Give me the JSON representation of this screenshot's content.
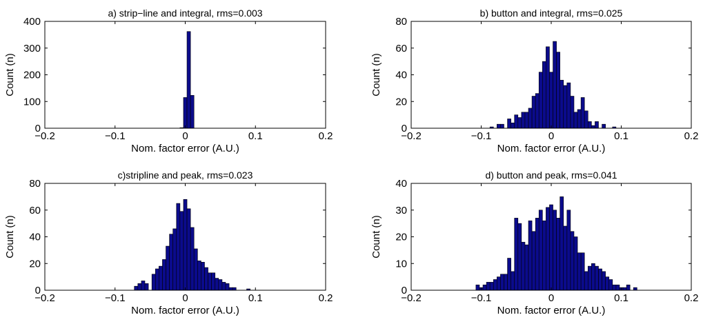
{
  "bar_color": "#0b0b8c",
  "bar_edge": "#000000",
  "chart_data": [
    {
      "type": "bar",
      "title": "a) strip−line and integral, rms=0.003",
      "xlabel": "Nom. factor error (A.U.)",
      "ylabel": "Count (n)",
      "xlim": [
        -0.2,
        0.2
      ],
      "ylim": [
        0,
        400
      ],
      "xticks": [
        -0.2,
        -0.1,
        0,
        0.1,
        0.2
      ],
      "xtick_labels": [
        "−0.2",
        "−0.1",
        "0",
        "0.1",
        "0.2"
      ],
      "yticks": [
        0,
        100,
        200,
        300,
        400
      ],
      "ytick_labels": [
        "0",
        "100",
        "200",
        "300",
        "400"
      ],
      "bin_width": 0.005,
      "x": [
        -0.005,
        0,
        0.005,
        0.01
      ],
      "values": [
        2,
        115,
        362,
        123
      ]
    },
    {
      "type": "bar",
      "title": "b) button and integral, rms=0.025",
      "xlabel": "Nom. factor error (A.U.)",
      "ylabel": "Count (n)",
      "xlim": [
        -0.2,
        0.2
      ],
      "ylim": [
        0,
        80
      ],
      "xticks": [
        -0.2,
        -0.1,
        0,
        0.1,
        0.2
      ],
      "xtick_labels": [
        "−0.2",
        "−0.1",
        "0",
        "0.1",
        "0.2"
      ],
      "yticks": [
        0,
        20,
        40,
        60,
        80
      ],
      "ytick_labels": [
        "0",
        "20",
        "40",
        "60",
        "80"
      ],
      "bin_width": 0.005,
      "x": [
        -0.085,
        -0.08,
        -0.075,
        -0.07,
        -0.065,
        -0.06,
        -0.055,
        -0.05,
        -0.045,
        -0.04,
        -0.035,
        -0.03,
        -0.025,
        -0.02,
        -0.015,
        -0.01,
        -0.005,
        0,
        0.005,
        0.01,
        0.015,
        0.02,
        0.025,
        0.03,
        0.035,
        0.04,
        0.045,
        0.05,
        0.055,
        0.06,
        0.065,
        0.07,
        0.075,
        0.08,
        0.085,
        0.09,
        0.095,
        0.1,
        0.105
      ],
      "values": [
        1,
        0,
        3,
        3,
        0,
        7,
        4,
        10,
        8,
        12,
        12,
        15,
        24,
        26,
        42,
        50,
        61,
        42,
        65,
        57,
        36,
        32,
        34,
        24,
        12,
        14,
        23,
        13,
        5,
        2,
        5,
        0,
        3,
        0,
        0,
        1,
        0,
        0,
        0
      ]
    },
    {
      "type": "bar",
      "title": "c)stripline and peak, rms=0.023",
      "xlabel": "Nom. factor error (A.U.)",
      "ylabel": "Count (n)",
      "xlim": [
        -0.2,
        0.2
      ],
      "ylim": [
        0,
        80
      ],
      "xticks": [
        -0.2,
        -0.1,
        0,
        0.1,
        0.2
      ],
      "xtick_labels": [
        "−0.2",
        "−0.1",
        "0",
        "0.1",
        "0.2"
      ],
      "yticks": [
        0,
        20,
        40,
        60,
        80
      ],
      "ytick_labels": [
        "0",
        "20",
        "40",
        "60",
        "80"
      ],
      "bin_width": 0.005,
      "x": [
        -0.07,
        -0.065,
        -0.06,
        -0.055,
        -0.05,
        -0.045,
        -0.04,
        -0.035,
        -0.03,
        -0.025,
        -0.02,
        -0.015,
        -0.01,
        -0.005,
        0,
        0.005,
        0.01,
        0.015,
        0.02,
        0.025,
        0.03,
        0.035,
        0.04,
        0.045,
        0.05,
        0.055,
        0.06,
        0.065,
        0.07,
        0.075,
        0.08,
        0.085,
        0.09,
        0.095
      ],
      "values": [
        3,
        5,
        7,
        5,
        0,
        12,
        16,
        18,
        23,
        33,
        42,
        46,
        65,
        59,
        68,
        61,
        47,
        31,
        22,
        21,
        17,
        13,
        13,
        9,
        8,
        6,
        5,
        2,
        2,
        0,
        0,
        0,
        1,
        0
      ]
    },
    {
      "type": "bar",
      "title": "d) button and peak, rms=0.041",
      "xlabel": "Nom. factor error (A.U.)",
      "ylabel": "Count (n)",
      "xlim": [
        -0.2,
        0.2
      ],
      "ylim": [
        0,
        40
      ],
      "xticks": [
        -0.2,
        -0.1,
        0,
        0.1,
        0.2
      ],
      "xtick_labels": [
        "−0.2",
        "−0.1",
        "0",
        "0.1",
        "0.2"
      ],
      "yticks": [
        0,
        10,
        20,
        30,
        40
      ],
      "ytick_labels": [
        "0",
        "10",
        "20",
        "30",
        "40"
      ],
      "bin_width": 0.005,
      "x": [
        -0.105,
        -0.1,
        -0.095,
        -0.09,
        -0.085,
        -0.08,
        -0.075,
        -0.07,
        -0.065,
        -0.06,
        -0.055,
        -0.05,
        -0.045,
        -0.04,
        -0.035,
        -0.03,
        -0.025,
        -0.02,
        -0.015,
        -0.01,
        -0.005,
        0,
        0.005,
        0.01,
        0.015,
        0.02,
        0.025,
        0.03,
        0.035,
        0.04,
        0.045,
        0.05,
        0.055,
        0.06,
        0.065,
        0.07,
        0.075,
        0.08,
        0.085,
        0.09,
        0.095,
        0.1,
        0.105,
        0.11,
        0.115,
        0.12,
        0.125
      ],
      "values": [
        2,
        1,
        2,
        3,
        3,
        4,
        5,
        6,
        6,
        12,
        7,
        27,
        25,
        18,
        17,
        26,
        22,
        27,
        30,
        26,
        31,
        32,
        30,
        27,
        35,
        24,
        30,
        22,
        20,
        14,
        14,
        7,
        9,
        10,
        9,
        8,
        7,
        5,
        4,
        2,
        2,
        1,
        1,
        2,
        0,
        1,
        0
      ]
    }
  ]
}
